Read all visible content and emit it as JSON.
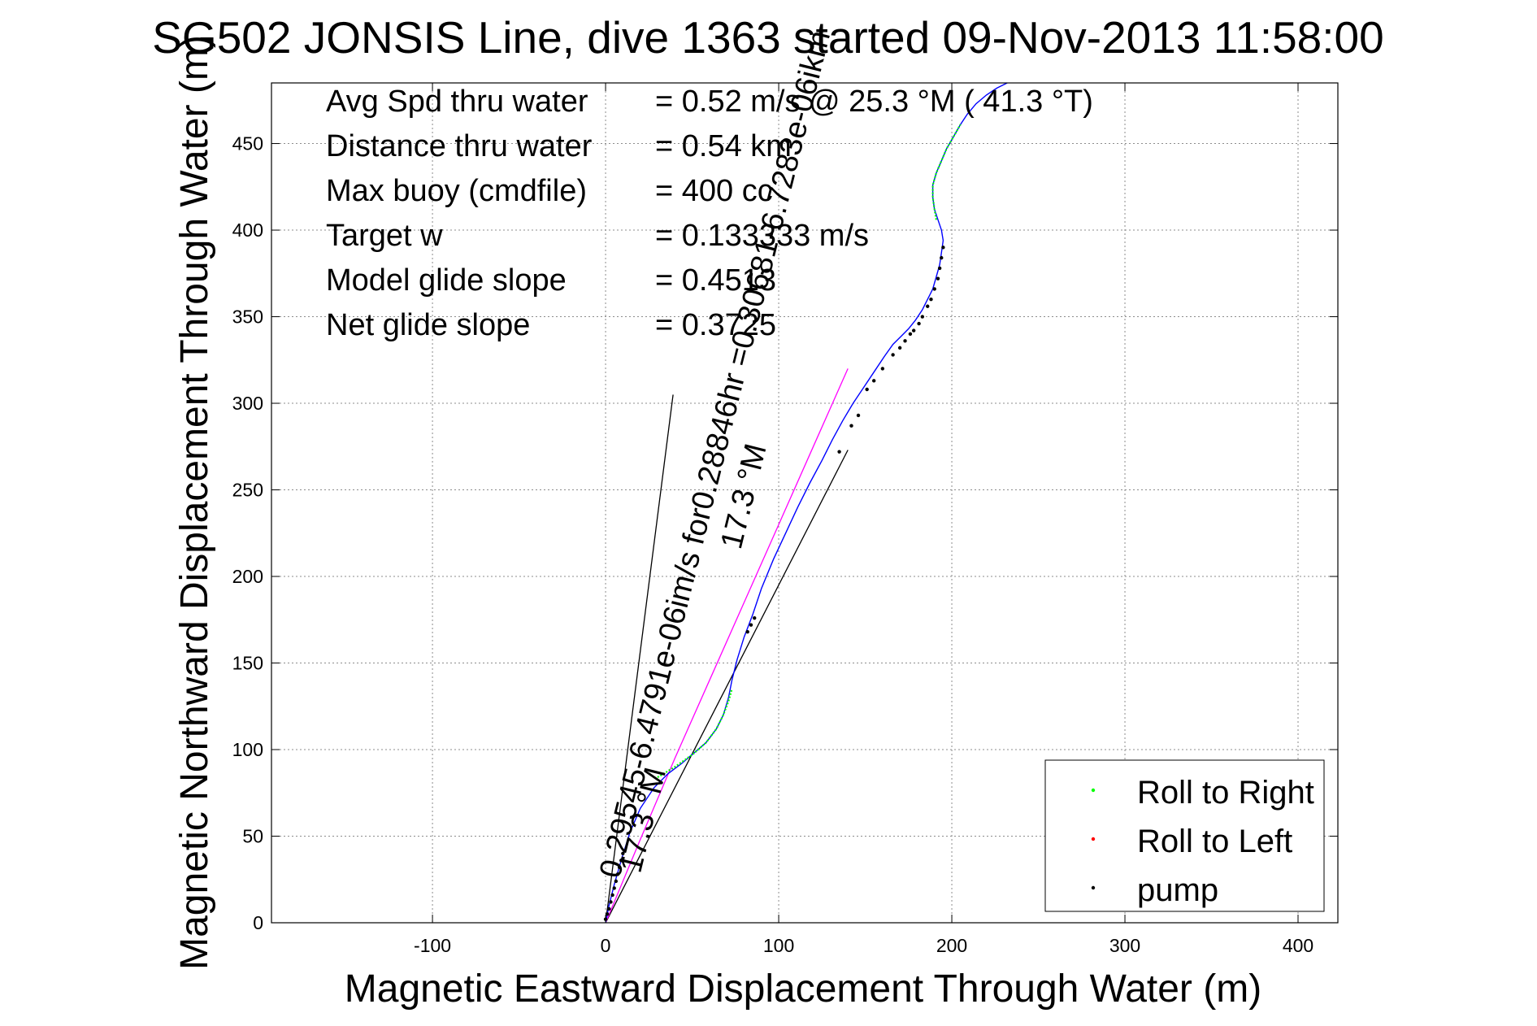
{
  "chart_data": {
    "type": "scatter",
    "title": "SG502 JONSIS Line, dive 1363 started 09-Nov-2013 11:58:00",
    "xlabel": "Magnetic Eastward Displacement Through Water (m)",
    "ylabel": "Magnetic Northward Displacement Through Water (m)",
    "xlim": [
      -193,
      423
    ],
    "ylim": [
      0,
      485
    ],
    "xticks": [
      -100,
      0,
      100,
      200,
      300,
      400
    ],
    "yticks": [
      0,
      50,
      100,
      150,
      200,
      250,
      300,
      350,
      400,
      450
    ],
    "grid": true,
    "legend_position": "bottom-right",
    "stats": [
      {
        "label": "Avg Spd thru water",
        "value": "=  0.52 m/s @ 25.3 °M ( 41.3 °T)"
      },
      {
        "label": "Distance thru water",
        "value": "=  0.54 km"
      },
      {
        "label": "Max buoy (cmdfile)",
        "value": "= 400 cc"
      },
      {
        "label": "Target w",
        "value": "= 0.133333 m/s"
      },
      {
        "label": "Model glide slope",
        "value": "= 0.4513"
      },
      {
        "label": "Net glide slope",
        "value": "= 0.3725"
      }
    ],
    "legend": [
      {
        "label": "Roll to Right",
        "color": "#00ff00"
      },
      {
        "label": "Roll to Left",
        "color": "#ff0000"
      },
      {
        "label": "pump",
        "color": "#000000"
      }
    ],
    "track": {
      "color": "#0000ff",
      "x": [
        0,
        2,
        5,
        9,
        14,
        20,
        28,
        36,
        44,
        51,
        58,
        64,
        68,
        71,
        73,
        76,
        80,
        85,
        90,
        97,
        104,
        111,
        118,
        125,
        131,
        137,
        143,
        149,
        155,
        161,
        166,
        171,
        175,
        179,
        183,
        186,
        189,
        191,
        193,
        194,
        195,
        194,
        192,
        190,
        189,
        189,
        191,
        194,
        197,
        201,
        205,
        209,
        214,
        220,
        226,
        232
      ],
      "y": [
        0,
        10,
        22,
        36,
        52,
        66,
        78,
        86,
        92,
        98,
        104,
        112,
        120,
        130,
        140,
        152,
        165,
        178,
        193,
        210,
        225,
        240,
        254,
        267,
        279,
        290,
        300,
        309,
        318,
        327,
        334,
        339,
        343,
        348,
        354,
        360,
        366,
        373,
        380,
        387,
        394,
        400,
        406,
        412,
        419,
        426,
        433,
        440,
        447,
        454,
        461,
        467,
        473,
        478,
        482,
        485
      ]
    },
    "roll_right_segments": [
      {
        "x": [
          30,
          40,
          50,
          58,
          64,
          68,
          71,
          73
        ],
        "y": [
          84,
          90,
          97,
          104,
          112,
          120,
          128,
          135
        ]
      },
      {
        "x": [
          191,
          190,
          189,
          189,
          191,
          194,
          197,
          201,
          205
        ],
        "y": [
          406,
          412,
          419,
          426,
          433,
          440,
          447,
          454,
          461
        ]
      }
    ],
    "pump_points": {
      "x": [
        0,
        1,
        2,
        3,
        4,
        5,
        6,
        7,
        8,
        9,
        10,
        82,
        84,
        86,
        135,
        142,
        146,
        151,
        155,
        160,
        166,
        170,
        173,
        176,
        178,
        181,
        183,
        186,
        188,
        190,
        192,
        193,
        194,
        195
      ],
      "y": [
        2,
        5,
        8,
        12,
        16,
        20,
        24,
        28,
        32,
        36,
        40,
        168,
        172,
        176,
        272,
        287,
        293,
        308,
        313,
        320,
        328,
        332,
        336,
        340,
        342,
        346,
        350,
        356,
        360,
        366,
        372,
        378,
        384,
        390
      ]
    },
    "model_line": {
      "color": "#ff00ff",
      "x": [
        0,
        20,
        40,
        60,
        80,
        100,
        120,
        140
      ],
      "y": [
        0,
        48,
        95,
        140,
        185,
        230,
        275,
        320
      ]
    },
    "reference_lines": [
      {
        "x": [
          0,
          39
        ],
        "y": [
          0,
          305
        ]
      },
      {
        "x": [
          0,
          140
        ],
        "y": [
          0,
          273
        ]
      }
    ],
    "rotated_labels": [
      {
        "text": "0.29545-6.4791e-06im/s for0.28846hr =0.30681-6.7283e-06ikm",
        "x": 8,
        "y": 25,
        "angle": -76
      },
      {
        "text": "17.3 °M",
        "x": 20,
        "y": 28,
        "angle": -76
      },
      {
        "text": "17.3 °M",
        "x": 78,
        "y": 215,
        "angle": -76
      }
    ]
  }
}
